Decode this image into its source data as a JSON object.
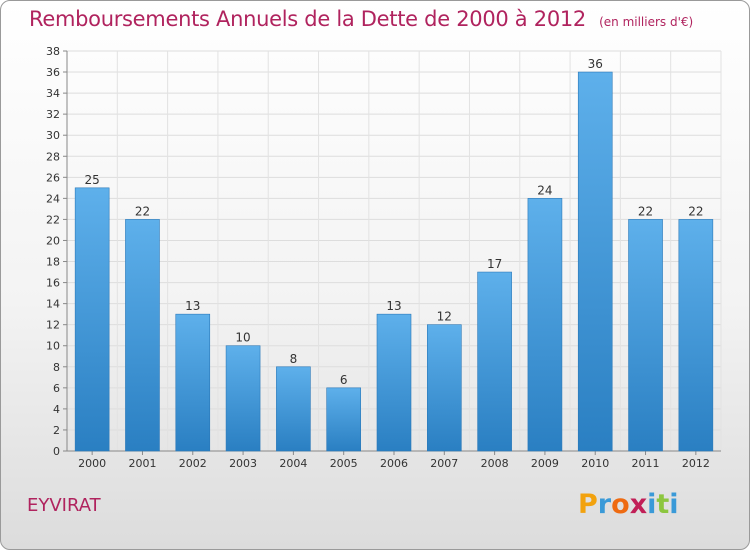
{
  "header": {
    "title": "Remboursements Annuels de la Dette de 2000 à 2012",
    "unit": "(en milliers d'€)"
  },
  "footer": {
    "commune": "EYVIRAT",
    "logo_letters": [
      "P",
      "r",
      "o",
      "x",
      "i",
      "t",
      "i"
    ],
    "logo_colors": [
      "#f2a20e",
      "#3a9ad8",
      "#ee6b12",
      "#c11f57",
      "#3a9ad8",
      "#8cc63f",
      "#3a9ad8"
    ]
  },
  "chart_data": {
    "type": "bar",
    "title": "Remboursements Annuels de la Dette de 2000 à 2012",
    "subtitle": "(en milliers d'€)",
    "xlabel": "",
    "ylabel": "",
    "categories": [
      "2000",
      "2001",
      "2002",
      "2003",
      "2004",
      "2005",
      "2006",
      "2007",
      "2008",
      "2009",
      "2010",
      "2011",
      "2012"
    ],
    "values": [
      25,
      22,
      13,
      10,
      8,
      6,
      13,
      12,
      17,
      24,
      36,
      22,
      22
    ],
    "ylim": [
      0,
      38
    ],
    "yticks": [
      0,
      2,
      4,
      6,
      8,
      10,
      12,
      14,
      16,
      18,
      20,
      22,
      24,
      26,
      28,
      30,
      32,
      34,
      36,
      38
    ],
    "grid": true,
    "bar_color": "#3a8fd4",
    "data_labels": true
  }
}
